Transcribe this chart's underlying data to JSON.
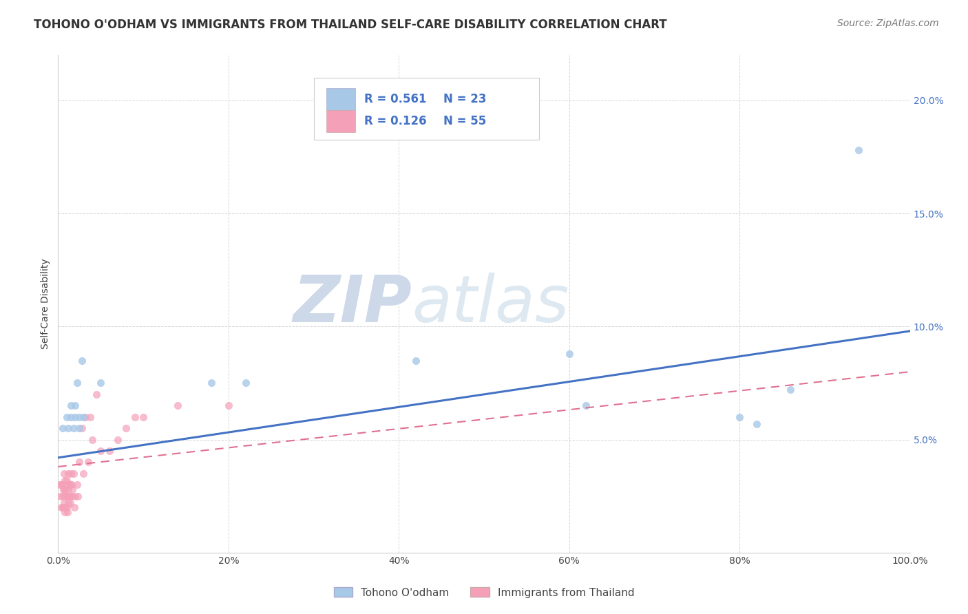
{
  "title": "TOHONO O'ODHAM VS IMMIGRANTS FROM THAILAND SELF-CARE DISABILITY CORRELATION CHART",
  "source": "Source: ZipAtlas.com",
  "ylabel": "Self-Care Disability",
  "watermark_zip": "ZIP",
  "watermark_atlas": "atlas",
  "legend_r_blue": "R = 0.561",
  "legend_n_blue": "N = 23",
  "legend_r_pink": "R = 0.126",
  "legend_n_pink": "N = 55",
  "blue_color": "#a8c8e8",
  "pink_color": "#f4a0b8",
  "blue_line_color": "#4472c4",
  "pink_line_color": "#e07090",
  "ytick_color": "#4472c4",
  "xlim": [
    0,
    1.0
  ],
  "ylim": [
    0,
    0.22
  ],
  "xticks": [
    0.0,
    0.2,
    0.4,
    0.6,
    0.8,
    1.0
  ],
  "yticks": [
    0.0,
    0.05,
    0.1,
    0.15,
    0.2
  ],
  "blue_scatter_x": [
    0.005,
    0.01,
    0.012,
    0.015,
    0.015,
    0.018,
    0.02,
    0.02,
    0.022,
    0.025,
    0.025,
    0.028,
    0.03,
    0.05,
    0.18,
    0.22,
    0.42,
    0.6,
    0.62,
    0.8,
    0.82,
    0.86,
    0.94
  ],
  "blue_scatter_y": [
    0.055,
    0.06,
    0.055,
    0.065,
    0.06,
    0.055,
    0.06,
    0.065,
    0.075,
    0.055,
    0.06,
    0.085,
    0.06,
    0.075,
    0.075,
    0.075,
    0.085,
    0.088,
    0.065,
    0.06,
    0.057,
    0.072,
    0.178
  ],
  "pink_scatter_x": [
    0.002,
    0.003,
    0.004,
    0.004,
    0.005,
    0.005,
    0.005,
    0.006,
    0.006,
    0.007,
    0.007,
    0.007,
    0.008,
    0.008,
    0.008,
    0.009,
    0.009,
    0.01,
    0.01,
    0.01,
    0.011,
    0.011,
    0.012,
    0.012,
    0.012,
    0.013,
    0.013,
    0.014,
    0.014,
    0.015,
    0.015,
    0.016,
    0.016,
    0.017,
    0.018,
    0.019,
    0.02,
    0.022,
    0.023,
    0.025,
    0.028,
    0.03,
    0.032,
    0.035,
    0.038,
    0.04,
    0.045,
    0.05,
    0.06,
    0.07,
    0.08,
    0.09,
    0.1,
    0.14,
    0.2
  ],
  "pink_scatter_y": [
    0.03,
    0.025,
    0.02,
    0.03,
    0.02,
    0.025,
    0.03,
    0.02,
    0.028,
    0.022,
    0.028,
    0.035,
    0.018,
    0.025,
    0.032,
    0.02,
    0.028,
    0.02,
    0.025,
    0.032,
    0.018,
    0.025,
    0.022,
    0.028,
    0.035,
    0.025,
    0.03,
    0.022,
    0.03,
    0.025,
    0.035,
    0.025,
    0.03,
    0.028,
    0.035,
    0.02,
    0.025,
    0.03,
    0.025,
    0.04,
    0.055,
    0.035,
    0.06,
    0.04,
    0.06,
    0.05,
    0.07,
    0.045,
    0.045,
    0.05,
    0.055,
    0.06,
    0.06,
    0.065,
    0.065
  ],
  "blue_line_y_start": 0.042,
  "blue_line_y_end": 0.098,
  "pink_line_y_start": 0.038,
  "pink_line_y_end": 0.08,
  "background_color": "#ffffff",
  "grid_color": "#cccccc",
  "title_fontsize": 12,
  "axis_label_fontsize": 10,
  "tick_fontsize": 10,
  "legend_fontsize": 12,
  "watermark_fontsize_zip": 68,
  "watermark_fontsize_atlas": 68,
  "watermark_color": "#cdd8e8",
  "source_fontsize": 10,
  "scatter_size": 55
}
